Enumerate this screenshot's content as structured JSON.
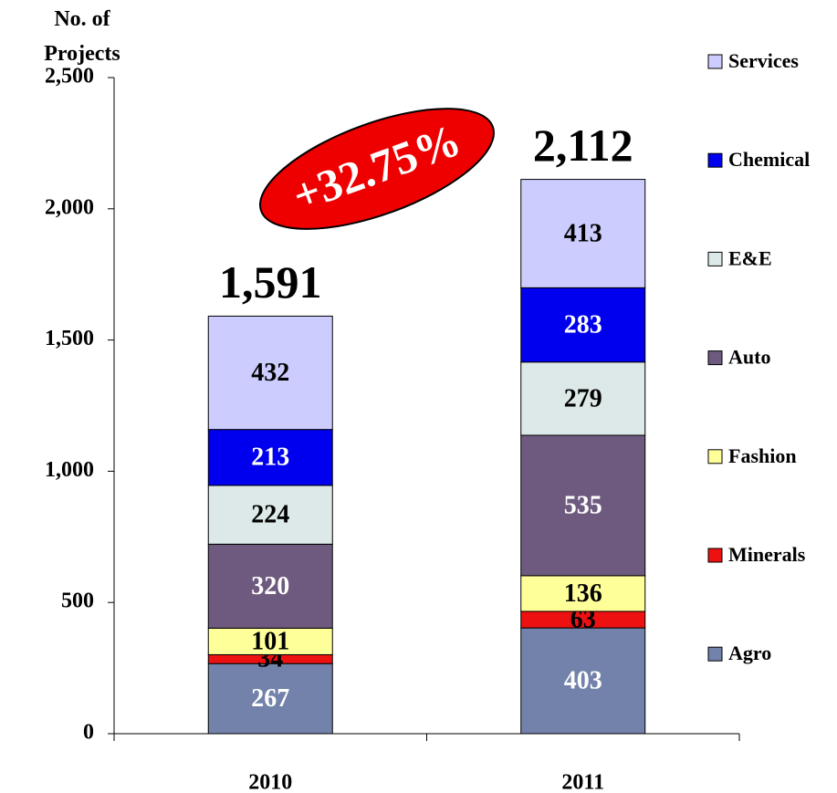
{
  "chart_data": {
    "type": "stacked_bar",
    "y_label": "No. of Projects",
    "categories": [
      "2010",
      "2011"
    ],
    "series": [
      {
        "name": "Agro",
        "color": "#7282aa",
        "label_color": "#ffffff",
        "values": [
          267,
          403
        ]
      },
      {
        "name": "Minerals",
        "color": "#ee1111",
        "label_color": "#000000",
        "values": [
          34,
          63
        ]
      },
      {
        "name": "Fashion",
        "color": "#ffff99",
        "label_color": "#000000",
        "values": [
          101,
          136
        ]
      },
      {
        "name": "Auto",
        "color": "#6d5a7e",
        "label_color": "#ffffff",
        "values": [
          320,
          535
        ]
      },
      {
        "name": "E&E",
        "color": "#dde8e8",
        "label_color": "#000000",
        "values": [
          224,
          279
        ]
      },
      {
        "name": "Chemical",
        "color": "#0000ee",
        "label_color": "#ffffff",
        "values": [
          213,
          283
        ]
      },
      {
        "name": "Services",
        "color": "#ccccff",
        "label_color": "#000000",
        "values": [
          432,
          413
        ]
      }
    ],
    "totals": [
      1591,
      2112
    ],
    "total_labels": [
      "1,591",
      "2,112"
    ],
    "annotation": "+32.75%",
    "ylim": [
      0,
      2500
    ],
    "yticks": [
      0,
      500,
      {
        "value": 1000,
        "label": "1,000"
      },
      {
        "value": 1500,
        "label": "1,500"
      },
      {
        "value": 2000,
        "label": "2,000"
      },
      {
        "value": 2500,
        "label": "2,500"
      }
    ],
    "grid": false,
    "legend": "right"
  }
}
